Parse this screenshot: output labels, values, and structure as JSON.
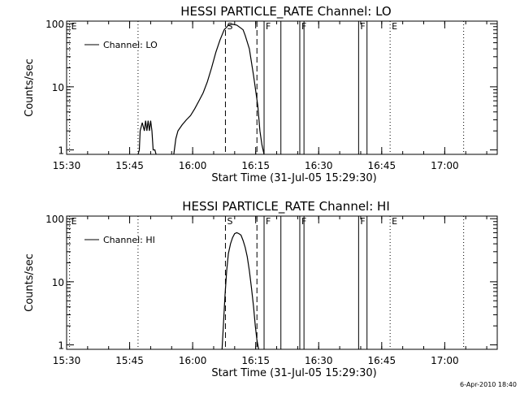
{
  "chart_data": [
    {
      "type": "line",
      "title": "HESSI PARTICLE_RATE Channel: LO",
      "xlabel": "Start Time (31-Jul-05 15:29:30)",
      "ylabel": "Counts/sec",
      "x_tick_labels": [
        "15:30",
        "15:45",
        "16:00",
        "16:15",
        "16:30",
        "16:45",
        "17:00"
      ],
      "x_ticks_min": [
        30.5,
        45.5,
        60.5,
        75.5,
        90.5,
        105.5,
        120.5
      ],
      "xlim": [
        30.5,
        133
      ],
      "y_scale": "log",
      "ylim": [
        0.85,
        110
      ],
      "y_tick_labels": [
        "1",
        "10",
        "100"
      ],
      "y_ticks": [
        1,
        10,
        100
      ],
      "legend": {
        "placement": "top-left",
        "entries": [
          "Channel: LO"
        ]
      },
      "series": [
        {
          "name": "Channel: LO",
          "segments": [
            {
              "x": [
                47.5,
                47.8,
                48.0,
                48.5,
                49.0,
                49.3,
                49.6,
                49.9,
                50.2,
                50.5,
                50.8,
                51.1,
                51.5,
                51.8
              ],
              "y": [
                0.85,
                1.0,
                2.0,
                2.7,
                2.0,
                2.9,
                2.0,
                2.9,
                2.0,
                2.9,
                2.0,
                1.0,
                1.0,
                0.85
              ]
            },
            {
              "x": [
                56.0,
                56.5,
                57.0,
                58.0,
                59.0,
                60.0,
                61.0,
                62.0,
                63.0,
                64.0,
                65.0,
                66.0,
                67.0,
                68.0,
                69.0,
                70.0,
                71.0,
                72.0,
                72.5,
                73.0,
                74.0,
                75.0,
                76.0,
                76.5,
                77.0,
                77.5
              ],
              "y": [
                0.85,
                1.5,
                2.0,
                2.5,
                3.0,
                3.5,
                4.5,
                6.0,
                8.0,
                12.0,
                20.0,
                35.0,
                55.0,
                80.0,
                95.0,
                98.0,
                95.0,
                85.0,
                80.0,
                65.0,
                40.0,
                15.0,
                5.0,
                2.0,
                1.2,
                0.85
              ]
            }
          ]
        }
      ],
      "markers": [
        {
          "x": 31.2,
          "label": "E",
          "style": "dotted"
        },
        {
          "x": 47.5,
          "label": "",
          "style": "dotted"
        },
        {
          "x": 68.3,
          "label": "S",
          "style": "dashed"
        },
        {
          "x": 75.8,
          "label": "",
          "style": "dashed"
        },
        {
          "x": 77.5,
          "label": "F",
          "style": "solid"
        },
        {
          "x": 81.5,
          "label": "",
          "style": "solid"
        },
        {
          "x": 86.0,
          "label": "F",
          "style": "solid"
        },
        {
          "x": 87.0,
          "label": "",
          "style": "solid"
        },
        {
          "x": 100.0,
          "label": "F",
          "style": "solid"
        },
        {
          "x": 102.0,
          "label": "",
          "style": "solid"
        },
        {
          "x": 107.5,
          "label": "E",
          "style": "dotted"
        },
        {
          "x": 125.0,
          "label": "",
          "style": "dotted"
        }
      ]
    },
    {
      "type": "line",
      "title": "HESSI PARTICLE_RATE Channel: HI",
      "xlabel": "Start Time (31-Jul-05 15:29:30)",
      "ylabel": "Counts/sec",
      "x_tick_labels": [
        "15:30",
        "15:45",
        "16:00",
        "16:15",
        "16:30",
        "16:45",
        "17:00"
      ],
      "x_ticks_min": [
        30.5,
        45.5,
        60.5,
        75.5,
        90.5,
        105.5,
        120.5
      ],
      "xlim": [
        30.5,
        133
      ],
      "y_scale": "log",
      "ylim": [
        0.85,
        110
      ],
      "y_tick_labels": [
        "1",
        "10",
        "100"
      ],
      "y_ticks": [
        1,
        10,
        100
      ],
      "legend": {
        "placement": "top-left",
        "entries": [
          "Channel: HI"
        ]
      },
      "series": [
        {
          "name": "Channel: HI",
          "segments": [
            {
              "x": [
                67.5,
                67.8,
                68.2,
                68.6,
                69.0,
                69.5,
                70.0,
                70.5,
                71.0,
                71.5,
                72.0,
                72.5,
                73.0,
                73.5,
                74.0,
                74.5,
                75.0,
                75.4,
                75.8,
                76.2
              ],
              "y": [
                0.85,
                2.0,
                6.0,
                15.0,
                28.0,
                40.0,
                50.0,
                58.0,
                60.0,
                58.0,
                55.0,
                45.0,
                35.0,
                25.0,
                15.0,
                8.0,
                4.0,
                2.0,
                1.2,
                0.85
              ]
            }
          ]
        }
      ],
      "markers": [
        {
          "x": 31.2,
          "label": "E",
          "style": "dotted"
        },
        {
          "x": 47.5,
          "label": "",
          "style": "dotted"
        },
        {
          "x": 68.3,
          "label": "S",
          "style": "dashed"
        },
        {
          "x": 75.8,
          "label": "",
          "style": "dashed"
        },
        {
          "x": 77.5,
          "label": "F",
          "style": "solid"
        },
        {
          "x": 81.5,
          "label": "",
          "style": "solid"
        },
        {
          "x": 86.0,
          "label": "F",
          "style": "solid"
        },
        {
          "x": 87.0,
          "label": "",
          "style": "solid"
        },
        {
          "x": 100.0,
          "label": "F",
          "style": "solid"
        },
        {
          "x": 102.0,
          "label": "",
          "style": "solid"
        },
        {
          "x": 107.5,
          "label": "E",
          "style": "dotted"
        },
        {
          "x": 125.0,
          "label": "",
          "style": "dotted"
        }
      ]
    }
  ],
  "footer": {
    "timestamp": "6-Apr-2010 18:40"
  }
}
